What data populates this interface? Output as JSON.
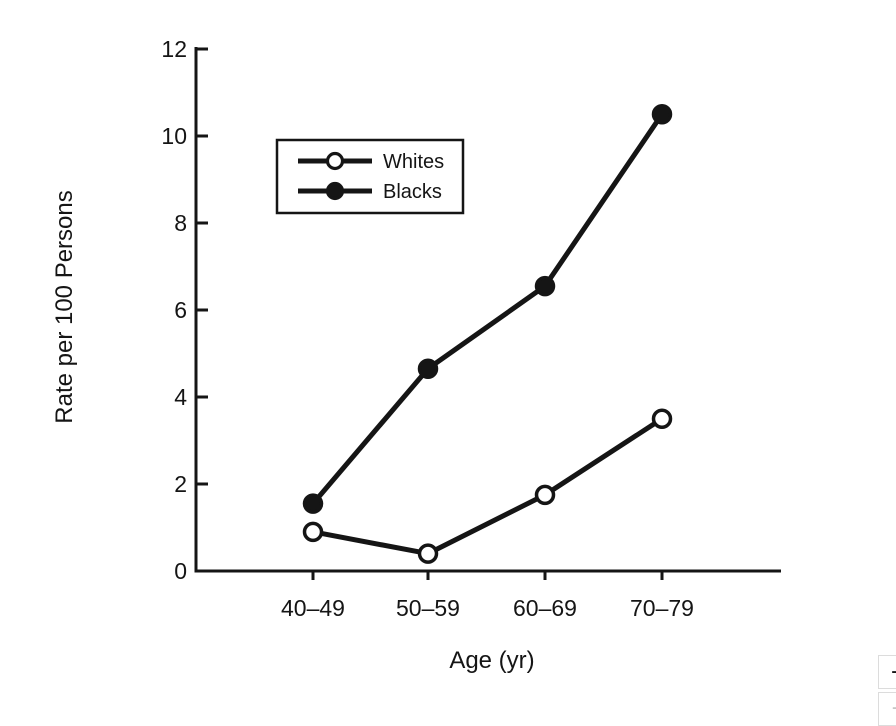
{
  "figure": {
    "background": "#ffffff",
    "ink_color": "#151515"
  },
  "chart_data": {
    "type": "line",
    "title": "",
    "xlabel": "Age (yr)",
    "ylabel": "Rate per 100 Persons",
    "categories": [
      "40–49",
      "50–59",
      "60–69",
      "70–79"
    ],
    "series": [
      {
        "name": "Whites",
        "marker": "open-circle",
        "values": [
          0.9,
          0.4,
          1.75,
          3.5
        ]
      },
      {
        "name": "Blacks",
        "marker": "filled-circle",
        "values": [
          1.55,
          4.65,
          6.55,
          10.5
        ]
      }
    ],
    "ylim": [
      0,
      12
    ],
    "yticks": [
      0,
      2,
      4,
      6,
      8,
      10,
      12
    ],
    "grid": false,
    "legend_position": "upper-left-inside",
    "legend_entries": [
      "Whites",
      "Blacks"
    ]
  },
  "zoom_control": {
    "zoom_in_label": "+",
    "zoom_out_label": "−"
  }
}
